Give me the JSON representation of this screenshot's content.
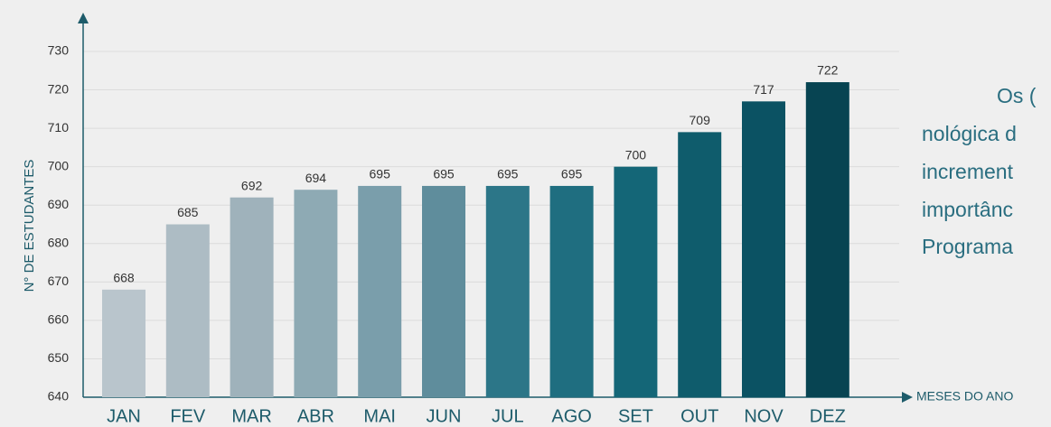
{
  "chart_data": {
    "type": "bar",
    "y_label": "N° DE ESTUDANTES",
    "x_label": "MESES DO ANO",
    "categories": [
      "JAN",
      "FEV",
      "MAR",
      "ABR",
      "MAI",
      "JUN",
      "JUL",
      "AGO",
      "SET",
      "OUT",
      "NOV",
      "DEZ"
    ],
    "values": [
      668,
      685,
      692,
      694,
      695,
      695,
      695,
      695,
      700,
      709,
      717,
      722
    ],
    "colors": [
      "#b9c5cc",
      "#adbcc4",
      "#9fb2bb",
      "#8eaab4",
      "#7a9eab",
      "#5f8d9c",
      "#2c7688",
      "#1f6e80",
      "#146677",
      "#0f5c6c",
      "#0b5263",
      "#074452"
    ],
    "ylim": [
      640,
      730
    ],
    "yticks": [
      640,
      650,
      660,
      670,
      680,
      690,
      700,
      710,
      720,
      730
    ],
    "grid": true
  },
  "side_text": [
    "Os (",
    "nológica d",
    "increment",
    "importânc",
    "Programa"
  ]
}
